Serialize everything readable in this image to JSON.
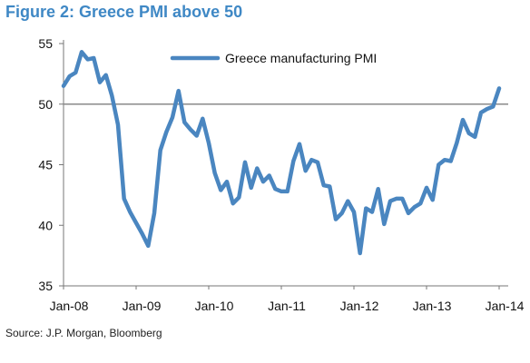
{
  "title": "Figure 2: Greece PMI above 50",
  "source": "Source: J.P. Morgan, Bloomberg",
  "chart_data": {
    "type": "line",
    "title": "Figure 2: Greece PMI above 50",
    "xlabel": "",
    "ylabel": "",
    "ylim": [
      35,
      55
    ],
    "yticks": [
      35,
      40,
      45,
      50,
      55
    ],
    "x_tick_labels": [
      "Jan-08",
      "Jan-09",
      "Jan-10",
      "Jan-11",
      "Jan-12",
      "Jan-13",
      "Jan-14"
    ],
    "x_start": "Jan-08",
    "x_end": "Jan-14",
    "reference_line": 50,
    "grid": false,
    "legend_position": "top-right",
    "series": [
      {
        "name": "Greece manufacturing PMI",
        "color": "#4a86c0",
        "x": [
          "Jan-08",
          "Feb-08",
          "Mar-08",
          "Apr-08",
          "May-08",
          "Jun-08",
          "Jul-08",
          "Aug-08",
          "Sep-08",
          "Oct-08",
          "Nov-08",
          "Dec-08",
          "Jan-09",
          "Feb-09",
          "Mar-09",
          "Apr-09",
          "May-09",
          "Jun-09",
          "Jul-09",
          "Aug-09",
          "Sep-09",
          "Oct-09",
          "Nov-09",
          "Dec-09",
          "Jan-10",
          "Feb-10",
          "Mar-10",
          "Apr-10",
          "May-10",
          "Jun-10",
          "Jul-10",
          "Aug-10",
          "Sep-10",
          "Oct-10",
          "Nov-10",
          "Dec-10",
          "Jan-11",
          "Feb-11",
          "Mar-11",
          "Apr-11",
          "May-11",
          "Jun-11",
          "Jul-11",
          "Aug-11",
          "Sep-11",
          "Oct-11",
          "Nov-11",
          "Dec-11",
          "Jan-12",
          "Feb-12",
          "Mar-12",
          "Apr-12",
          "May-12",
          "Jun-12",
          "Jul-12",
          "Aug-12",
          "Sep-12",
          "Oct-12",
          "Nov-12",
          "Dec-12",
          "Jan-13",
          "Feb-13",
          "Mar-13",
          "Apr-13",
          "May-13",
          "Jun-13",
          "Jul-13",
          "Aug-13",
          "Sep-13",
          "Oct-13",
          "Nov-13",
          "Dec-13",
          "Jan-14"
        ],
        "values": [
          51.5,
          52.3,
          52.6,
          54.3,
          53.7,
          53.8,
          51.8,
          52.4,
          50.7,
          48.3,
          42.2,
          41.1,
          40.2,
          39.3,
          38.3,
          41.0,
          46.2,
          47.7,
          48.9,
          51.1,
          48.5,
          47.9,
          47.4,
          48.8,
          46.8,
          44.3,
          42.9,
          43.6,
          41.8,
          42.3,
          45.2,
          43.1,
          44.7,
          43.6,
          44.1,
          43.0,
          42.8,
          42.8,
          45.3,
          46.7,
          44.5,
          45.4,
          45.2,
          43.3,
          43.2,
          40.5,
          41.0,
          42.0,
          41.1,
          37.7,
          41.4,
          41.1,
          43.0,
          40.1,
          42.0,
          42.2,
          42.2,
          41.0,
          41.5,
          41.8,
          43.1,
          42.1,
          45.0,
          45.4,
          45.3,
          46.8,
          48.7,
          47.6,
          47.3,
          49.3,
          49.6,
          49.8,
          51.3
        ]
      }
    ]
  }
}
